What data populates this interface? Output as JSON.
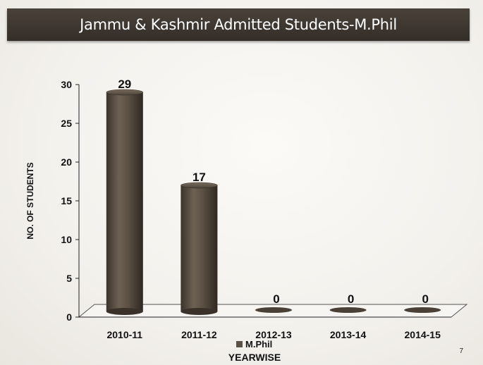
{
  "slide": {
    "title": "Jammu & Kashmir Admitted Students-M.Phil",
    "page_number": "7"
  },
  "chart_data": {
    "type": "bar",
    "title": "Jammu & Kashmir Admitted Students-M.Phil",
    "xlabel": "YEARWISE",
    "ylabel": "NO. OF  STUDENTS",
    "categories": [
      "2010-11",
      "2011-12",
      "2012-13",
      "2013-14",
      "2014-15"
    ],
    "series": [
      {
        "name": "M.Phil",
        "values": [
          29,
          17,
          0,
          0,
          0
        ],
        "color": "#5c5145"
      }
    ],
    "ylim": [
      0,
      30
    ],
    "yticks": [
      0,
      5,
      10,
      15,
      20,
      25,
      30
    ],
    "grid": false,
    "legend": "bottom",
    "style": "3d-cylinder",
    "data_labels": true
  }
}
